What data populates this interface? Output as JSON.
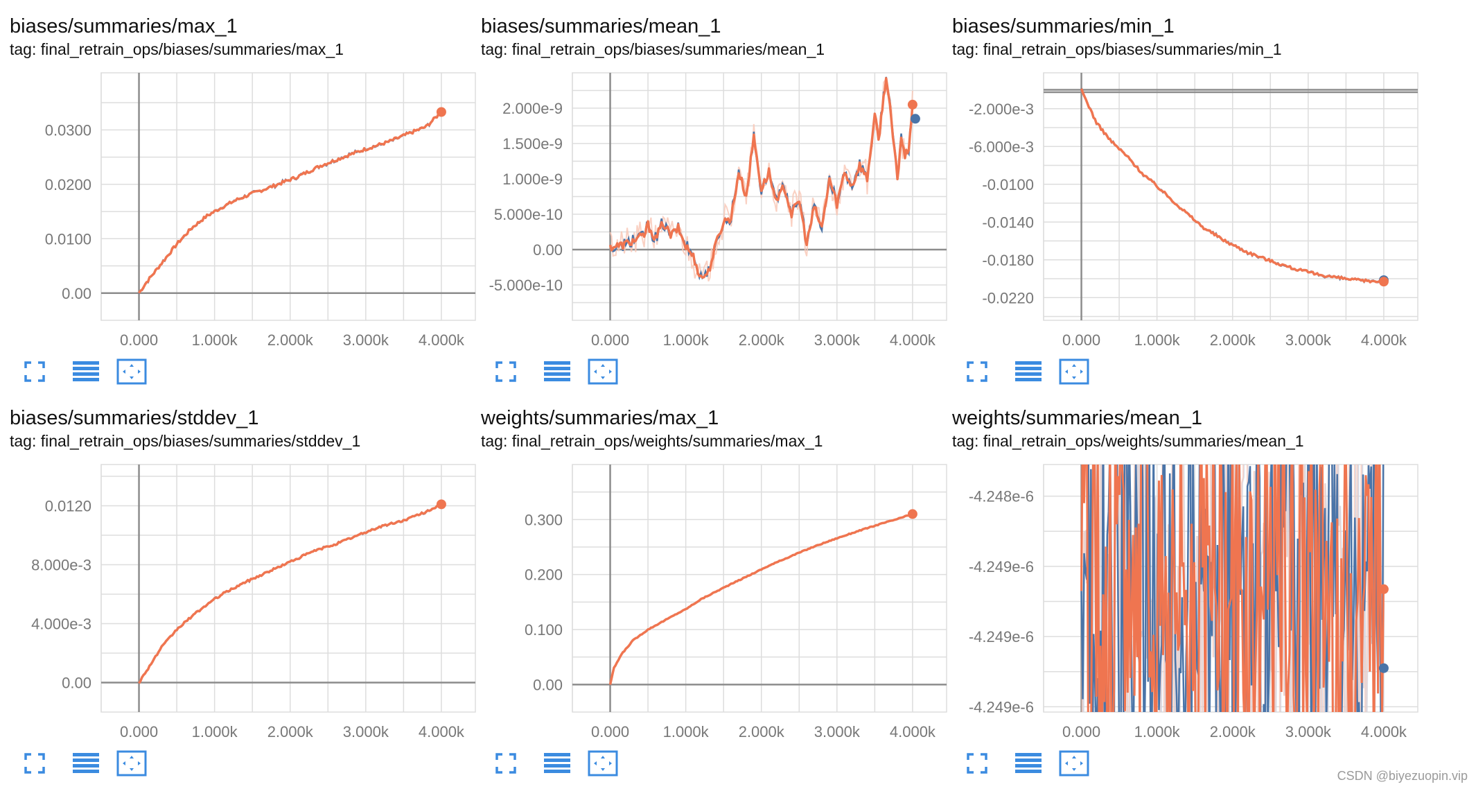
{
  "cards": [
    {
      "title": "biases/summaries/max_1",
      "tag": "tag: final_retrain_ops/biases/summaries/max_1"
    },
    {
      "title": "biases/summaries/mean_1",
      "tag": "tag: final_retrain_ops/biases/summaries/mean_1"
    },
    {
      "title": "biases/summaries/min_1",
      "tag": "tag: final_retrain_ops/biases/summaries/min_1"
    },
    {
      "title": "biases/summaries/stddev_1",
      "tag": "tag: final_retrain_ops/biases/summaries/stddev_1"
    },
    {
      "title": "weights/summaries/max_1",
      "tag": "tag: final_retrain_ops/weights/summaries/max_1"
    },
    {
      "title": "weights/summaries/mean_1",
      "tag": "tag: final_retrain_ops/weights/summaries/mean_1"
    }
  ],
  "controls": {
    "icons": [
      "fullscreen-icon",
      "list-icon",
      "fit-domain-icon"
    ]
  },
  "colors": {
    "smoothed": "#ef7550",
    "raw": "#4a74a8",
    "raw_faint": "#f9c6b4",
    "raw_faint_blue": "#c7d8ec",
    "grid": "#dddddd",
    "axis": "#8c8c8c"
  },
  "watermark": "CSDN @biyezuopin.vip",
  "chart_data": [
    {
      "type": "line",
      "title": "biases/summaries/max_1",
      "x_ticks": [
        "0.000",
        "1.000k",
        "2.000k",
        "3.000k",
        "4.000k"
      ],
      "y_ticks": [
        "0.00",
        "0.0100",
        "0.0200",
        "0.0300"
      ],
      "xlim": [
        -500,
        4450
      ],
      "ylim": [
        -0.005,
        0.0405
      ],
      "series": [
        {
          "values": [
            [
              0,
              0
            ],
            [
              100,
              0.002
            ],
            [
              300,
              0.0055
            ],
            [
              500,
              0.009
            ],
            [
              700,
              0.012
            ],
            [
              900,
              0.0142
            ],
            [
              1100,
              0.0158
            ],
            [
              1300,
              0.0172
            ],
            [
              1500,
              0.0183
            ],
            [
              1800,
              0.0198
            ],
            [
              2100,
              0.0214
            ],
            [
              2400,
              0.0234
            ],
            [
              2700,
              0.025
            ],
            [
              3000,
              0.0265
            ],
            [
              3300,
              0.0278
            ],
            [
              3600,
              0.0295
            ],
            [
              3800,
              0.0306
            ],
            [
              4000,
              0.0333
            ]
          ]
        }
      ],
      "noise": 0.0003
    },
    {
      "type": "line",
      "title": "biases/summaries/mean_1",
      "x_ticks": [
        "0.000",
        "1.000k",
        "2.000k",
        "3.000k",
        "4.000k"
      ],
      "y_ticks": [
        "-5.000e-10",
        "0.00",
        "5.000e-10",
        "1.000e-9",
        "1.500e-9",
        "2.000e-9"
      ],
      "xlim": [
        -500,
        4450
      ],
      "ylim": [
        -1e-09,
        2.5e-09
      ],
      "series": [
        {
          "values": [
            [
              0,
              4e-11
            ],
            [
              150,
              6e-11
            ],
            [
              300,
              1.2e-10
            ],
            [
              450,
              2e-10
            ],
            [
              500,
              3.5e-10
            ],
            [
              600,
              1.5e-10
            ],
            [
              700,
              3.8e-10
            ],
            [
              800,
              2e-10
            ],
            [
              900,
              3e-10
            ],
            [
              1000,
              5e-11
            ],
            [
              1100,
              -1e-10
            ],
            [
              1200,
              -4e-10
            ],
            [
              1300,
              -3.2e-10
            ],
            [
              1400,
              8e-11
            ],
            [
              1500,
              4e-10
            ],
            [
              1600,
              4.5e-10
            ],
            [
              1700,
              1.1e-09
            ],
            [
              1800,
              7.5e-10
            ],
            [
              1900,
              1.6e-09
            ],
            [
              2000,
              8.5e-10
            ],
            [
              2100,
              1.1e-09
            ],
            [
              2200,
              6.5e-10
            ],
            [
              2300,
              9e-10
            ],
            [
              2400,
              5e-10
            ],
            [
              2500,
              7e-10
            ],
            [
              2600,
              8e-11
            ],
            [
              2700,
              6e-10
            ],
            [
              2800,
              3e-10
            ],
            [
              2900,
              1e-09
            ],
            [
              3000,
              6.5e-10
            ],
            [
              3100,
              1.1e-09
            ],
            [
              3200,
              9e-10
            ],
            [
              3300,
              1.2e-09
            ],
            [
              3400,
              1e-09
            ],
            [
              3500,
              1.9e-09
            ],
            [
              3550,
              1.55e-09
            ],
            [
              3600,
              2e-09
            ],
            [
              3650,
              2.45e-09
            ],
            [
              3700,
              2e-09
            ],
            [
              3800,
              1e-09
            ],
            [
              3850,
              1.6e-09
            ],
            [
              3900,
              1.3e-09
            ],
            [
              3950,
              1.45e-09
            ],
            [
              4000,
              2.05e-09
            ]
          ]
        }
      ],
      "raw_end": 1.85e-09,
      "noise": 6e-11
    },
    {
      "type": "line",
      "title": "biases/summaries/min_1",
      "x_ticks": [
        "0.000",
        "1.000k",
        "2.000k",
        "3.000k",
        "4.000k"
      ],
      "y_ticks": [
        "-2.000e-3",
        "-6.000e-3",
        "-0.0100",
        "-0.0140",
        "-0.0180",
        "-0.0220"
      ],
      "xlim": [
        -500,
        4450
      ],
      "ylim": [
        -0.0244,
        0.0018
      ],
      "series": [
        {
          "values": [
            [
              0,
              0
            ],
            [
              200,
              -0.0035
            ],
            [
              400,
              -0.0055
            ],
            [
              600,
              -0.007
            ],
            [
              800,
              -0.0088
            ],
            [
              1000,
              -0.0102
            ],
            [
              1300,
              -0.0124
            ],
            [
              1600,
              -0.0145
            ],
            [
              1900,
              -0.016
            ],
            [
              2200,
              -0.0172
            ],
            [
              2500,
              -0.0181
            ],
            [
              2800,
              -0.0189
            ],
            [
              3100,
              -0.0195
            ],
            [
              3400,
              -0.0199
            ],
            [
              3700,
              -0.0202
            ],
            [
              4000,
              -0.0203
            ]
          ]
        }
      ],
      "noise": 0.00015
    },
    {
      "type": "line",
      "title": "biases/summaries/stddev_1",
      "x_ticks": [
        "0.000",
        "1.000k",
        "2.000k",
        "3.000k",
        "4.000k"
      ],
      "y_ticks": [
        "0.00",
        "4.000e-3",
        "8.000e-3",
        "0.0120"
      ],
      "xlim": [
        -500,
        4450
      ],
      "ylim": [
        -0.002,
        0.0148
      ],
      "series": [
        {
          "values": [
            [
              0,
              0
            ],
            [
              100,
              0.0008
            ],
            [
              300,
              0.0024
            ],
            [
              500,
              0.0036
            ],
            [
              700,
              0.0045
            ],
            [
              900,
              0.0053
            ],
            [
              1100,
              0.006
            ],
            [
              1400,
              0.0068
            ],
            [
              1700,
              0.0075
            ],
            [
              2000,
              0.0082
            ],
            [
              2300,
              0.0089
            ],
            [
              2600,
              0.0094
            ],
            [
              2900,
              0.01
            ],
            [
              3200,
              0.0106
            ],
            [
              3500,
              0.011
            ],
            [
              3800,
              0.0116
            ],
            [
              4000,
              0.0121
            ]
          ]
        }
      ],
      "noise": 7e-05
    },
    {
      "type": "line",
      "title": "weights/summaries/max_1",
      "x_ticks": [
        "0.000",
        "1.000k",
        "2.000k",
        "3.000k",
        "4.000k"
      ],
      "y_ticks": [
        "0.00",
        "0.100",
        "0.200",
        "0.300"
      ],
      "xlim": [
        -500,
        4450
      ],
      "ylim": [
        -0.05,
        0.4
      ],
      "series": [
        {
          "values": [
            [
              0,
              0
            ],
            [
              50,
              0.03
            ],
            [
              150,
              0.055
            ],
            [
              300,
              0.08
            ],
            [
              500,
              0.1
            ],
            [
              700,
              0.115
            ],
            [
              900,
              0.13
            ],
            [
              1000,
              0.137
            ],
            [
              1200,
              0.155
            ],
            [
              1500,
              0.176
            ],
            [
              1800,
              0.196
            ],
            [
              2100,
              0.216
            ],
            [
              2400,
              0.234
            ],
            [
              2700,
              0.251
            ],
            [
              3000,
              0.266
            ],
            [
              3300,
              0.28
            ],
            [
              3600,
              0.293
            ],
            [
              3800,
              0.301
            ],
            [
              4000,
              0.31
            ]
          ]
        }
      ],
      "noise": 0.0008
    },
    {
      "type": "line",
      "title": "weights/summaries/mean_1",
      "x_ticks": [
        "0.000",
        "1.000k",
        "2.000k",
        "3.000k",
        "4.000k"
      ],
      "y_ticks": [
        "-4.248e-6",
        "-4.249e-6",
        "-4.249e-6",
        "-4.249e-6"
      ],
      "xlim": [
        -500,
        4450
      ],
      "ylim": [
        -4.24935e-06,
        -4.24794e-06
      ],
      "series": [
        {
          "start": -4.24866e-06,
          "end": -4.24865e-06,
          "raw_end": -4.2491e-06,
          "band": [
            -4.24935e-06,
            -4.24794e-06
          ]
        }
      ],
      "noise": 1
    }
  ]
}
